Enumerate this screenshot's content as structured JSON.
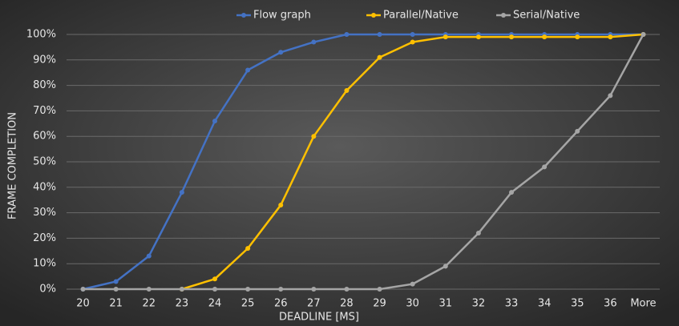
{
  "chart_data": {
    "type": "line",
    "x_label": "DEADLINE [MS]",
    "y_label": "FRAME COMPLETION",
    "categories": [
      "20",
      "21",
      "22",
      "23",
      "24",
      "25",
      "26",
      "27",
      "28",
      "29",
      "30",
      "31",
      "32",
      "33",
      "34",
      "35",
      "36",
      "More"
    ],
    "series": [
      {
        "name": "Flow graph",
        "color": "#4472c4",
        "values": [
          0,
          3,
          13,
          38,
          66,
          86,
          93,
          97,
          100,
          100,
          100,
          100,
          100,
          100,
          100,
          100,
          100,
          100
        ]
      },
      {
        "name": "Parallel/Native",
        "color": "#ffc000",
        "values": [
          null,
          null,
          null,
          0,
          4,
          16,
          33,
          60,
          78,
          91,
          97,
          99,
          99,
          99,
          99,
          99,
          99,
          100
        ]
      },
      {
        "name": "Serial/Native",
        "color": "#a5a5a5",
        "values": [
          0,
          0,
          0,
          0,
          0,
          0,
          0,
          0,
          0,
          0,
          2,
          9,
          22,
          38,
          48,
          62,
          76,
          100
        ]
      }
    ],
    "ylim": [
      0,
      100
    ],
    "yticks": [
      {
        "value": 0,
        "label": "0%"
      },
      {
        "value": 10,
        "label": "10%"
      },
      {
        "value": 20,
        "label": "20%"
      },
      {
        "value": 30,
        "label": "30%"
      },
      {
        "value": 40,
        "label": "40%"
      },
      {
        "value": 50,
        "label": "50%"
      },
      {
        "value": 60,
        "label": "60%"
      },
      {
        "value": 70,
        "label": "70%"
      },
      {
        "value": 80,
        "label": "80%"
      },
      {
        "value": 90,
        "label": "90%"
      },
      {
        "value": 100,
        "label": "100%"
      }
    ],
    "grid": true,
    "legend": "top"
  }
}
